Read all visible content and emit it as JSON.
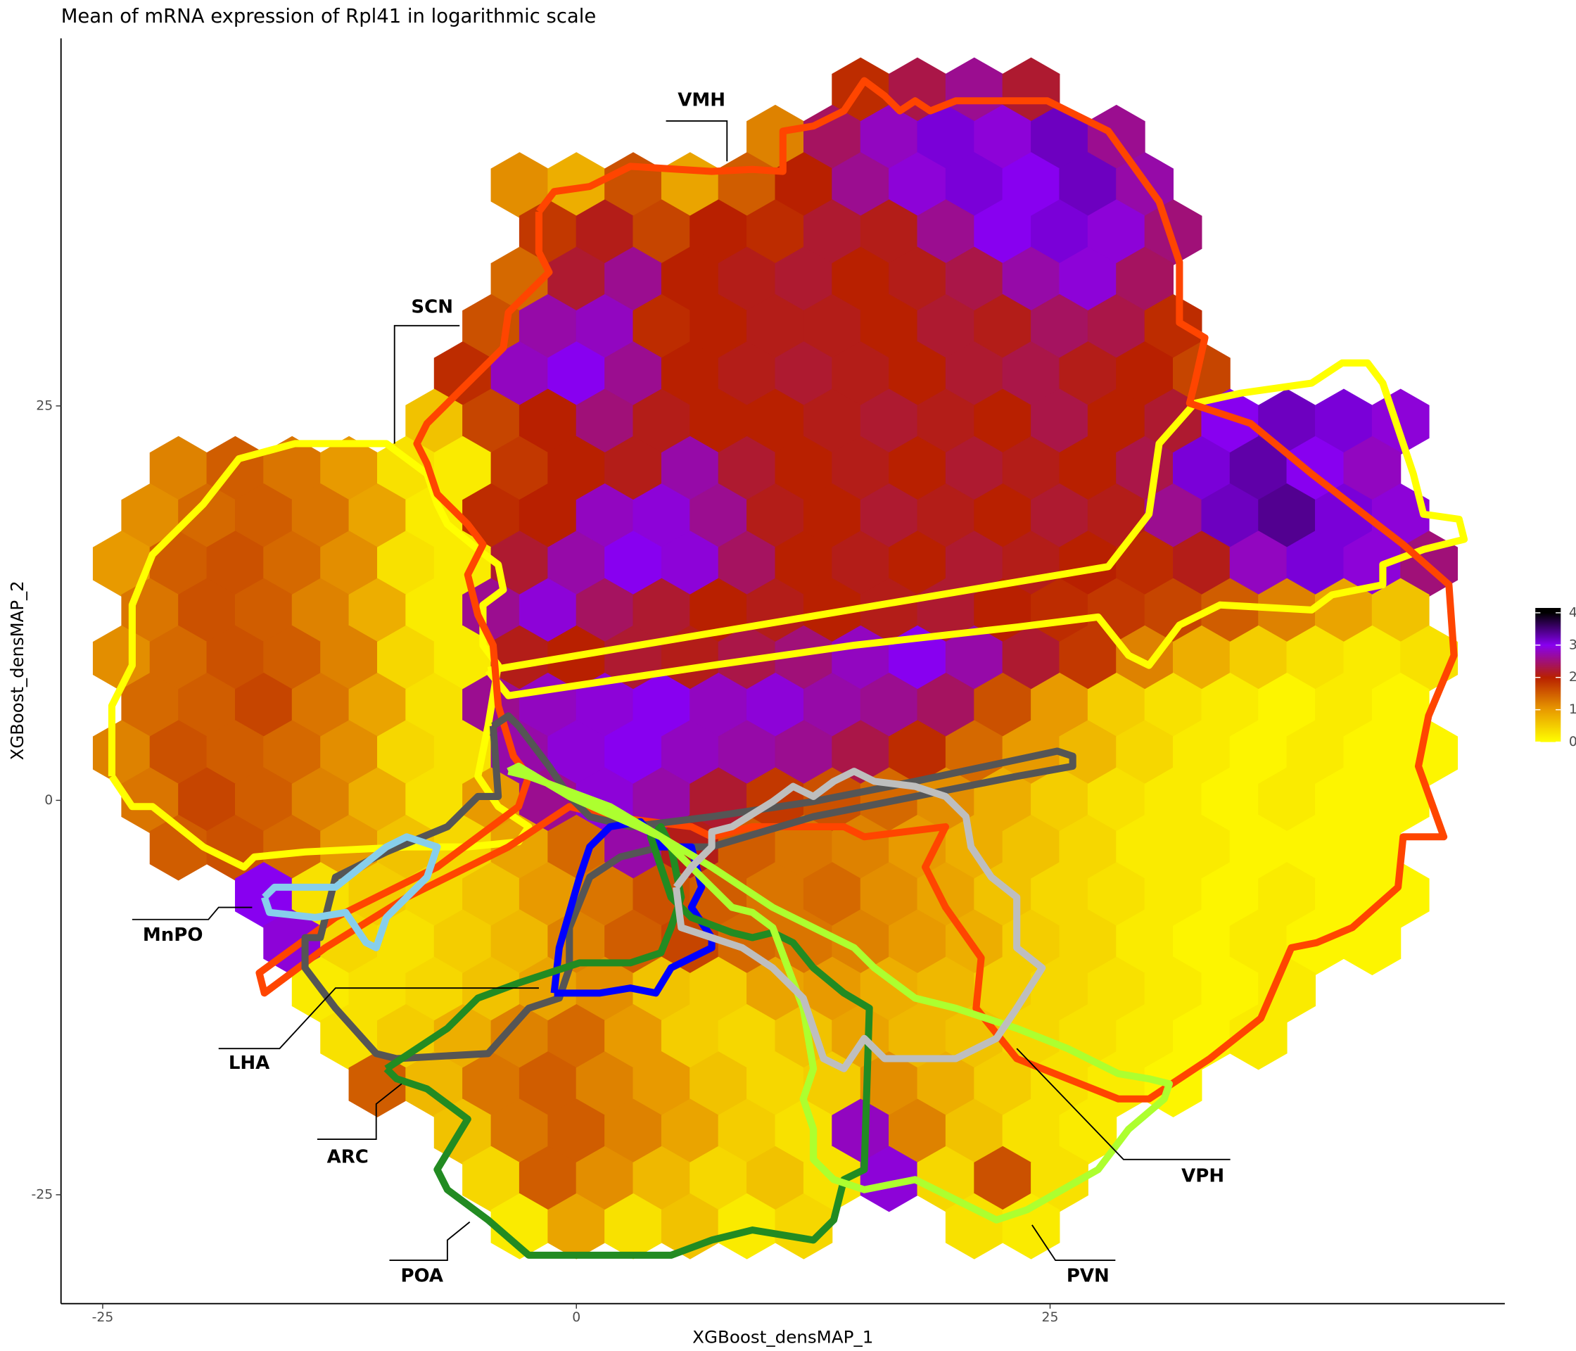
{
  "chart_data": {
    "type": "hexbin",
    "title": "Mean of mRNA expression of Rpl41 in logarithmic scale",
    "x_label": "XGBoost_densMAP_1",
    "y_label": "XGBoost_densMAP_2",
    "xlim": [
      -27.2,
      49
    ],
    "ylim": [
      -31.9,
      48.3
    ],
    "xticks": [
      -25,
      0,
      25
    ],
    "yticks": [
      -25,
      0,
      25
    ],
    "hexbins": [
      {
        "y": 45,
        "x": [
          15,
          18,
          21,
          24
        ],
        "values": [
          1.9,
          2.3,
          2.6,
          2.2
        ]
      },
      {
        "y": 42,
        "x": [
          10.5,
          13.5,
          16.5,
          19.5,
          22.5,
          25.5,
          28.5
        ],
        "values": [
          1.2,
          2.4,
          2.8,
          3.1,
          2.9,
          3.2,
          2.6
        ]
      },
      {
        "y": 39,
        "x": [
          -3,
          0,
          3,
          6,
          9,
          12,
          15,
          18,
          21,
          24,
          27,
          30
        ],
        "values": [
          1.1,
          0.8,
          1.6,
          0.9,
          1.5,
          2.0,
          2.6,
          2.9,
          3.1,
          3.0,
          3.2,
          2.7
        ]
      },
      {
        "y": 36,
        "x": [
          -1.5,
          1.5,
          4.5,
          7.5,
          10.5,
          13.5,
          16.5,
          19.5,
          22.5,
          25.5,
          28.5,
          31.5
        ],
        "values": [
          1.8,
          2.1,
          1.7,
          2.0,
          1.9,
          2.2,
          2.1,
          2.6,
          3.0,
          3.1,
          2.9,
          2.5
        ]
      },
      {
        "y": 33,
        "x": [
          -3,
          0,
          3,
          6,
          9,
          12,
          15,
          18,
          21,
          24,
          27,
          30
        ],
        "values": [
          1.4,
          2.2,
          2.6,
          2.0,
          2.1,
          2.2,
          2.0,
          2.1,
          2.3,
          2.7,
          2.9,
          2.4
        ]
      },
      {
        "y": 30,
        "x": [
          -4.5,
          -1.5,
          1.5,
          4.5,
          7.5,
          10.5,
          13.5,
          16.5,
          19.5,
          22.5,
          25.5,
          28.5,
          31.5
        ],
        "values": [
          1.6,
          2.7,
          2.8,
          1.9,
          2.0,
          2.1,
          2.1,
          2.0,
          2.2,
          2.1,
          2.4,
          2.3,
          1.9
        ]
      },
      {
        "y": 27,
        "x": [
          -6,
          -3,
          0,
          3,
          6,
          9,
          12,
          15,
          18,
          21,
          24,
          27,
          30,
          33
        ],
        "values": [
          1.9,
          2.8,
          3.0,
          2.6,
          2.0,
          2.1,
          2.2,
          2.1,
          2.0,
          2.2,
          2.3,
          2.1,
          2.0,
          1.7
        ]
      },
      {
        "y": 24,
        "x": [
          -7.5,
          -4.5,
          -1.5,
          1.5,
          4.5,
          7.5,
          10.5,
          13.5,
          16.5,
          19.5,
          22.5,
          25.5,
          28.5,
          31.5,
          34.5,
          37.5,
          40.5,
          43.5
        ],
        "values": [
          0.6,
          1.7,
          2.0,
          2.5,
          2.1,
          2.0,
          2.0,
          2.1,
          2.2,
          2.1,
          2.0,
          2.3,
          2.0,
          2.2,
          3.0,
          3.2,
          3.1,
          2.9
        ]
      },
      {
        "y": 21,
        "x": [
          -21,
          -18,
          -15,
          -12,
          -9,
          -6,
          -3,
          0,
          3,
          6,
          9,
          12,
          15,
          18,
          21,
          24,
          27,
          30,
          33,
          36,
          39,
          42
        ],
        "values": [
          1.2,
          1.5,
          1.3,
          1.0,
          0.3,
          0.2,
          1.8,
          2.0,
          2.1,
          2.7,
          2.2,
          2.0,
          2.1,
          2.0,
          2.2,
          2.1,
          2.0,
          2.3,
          3.1,
          3.3,
          3.0,
          2.8
        ]
      },
      {
        "y": 18,
        "x": [
          -22.5,
          -19.5,
          -16.5,
          -13.5,
          -10.5,
          -7.5,
          -4.5,
          -1.5,
          1.5,
          4.5,
          7.5,
          10.5,
          13.5,
          16.5,
          19.5,
          22.5,
          25.5,
          28.5,
          31.5,
          34.5,
          37.5,
          40.5,
          43.5
        ],
        "values": [
          1.1,
          1.4,
          1.5,
          1.3,
          0.9,
          0.2,
          1.9,
          2.0,
          2.8,
          2.9,
          2.6,
          2.1,
          2.0,
          2.2,
          2.1,
          2.0,
          2.2,
          2.1,
          2.6,
          3.2,
          3.4,
          3.1,
          2.9
        ]
      },
      {
        "y": 15,
        "x": [
          -24,
          -21,
          -18,
          -15,
          -12,
          -9,
          -6,
          -3,
          0,
          3,
          6,
          9,
          12,
          15,
          18,
          21,
          24,
          27,
          30,
          33,
          36,
          39,
          42,
          45
        ],
        "values": [
          1.0,
          1.5,
          1.6,
          1.4,
          1.1,
          0.3,
          0.2,
          2.2,
          2.7,
          3.0,
          2.9,
          2.4,
          2.0,
          2.1,
          2.0,
          2.2,
          2.1,
          2.0,
          1.9,
          2.1,
          2.8,
          3.1,
          2.9,
          2.5
        ]
      },
      {
        "y": 12,
        "x": [
          -22.5,
          -19.5,
          -16.5,
          -13.5,
          -10.5,
          -7.5,
          -4.5,
          -1.5,
          1.5,
          4.5,
          7.5,
          10.5,
          13.5,
          16.5,
          19.5,
          22.5,
          25.5,
          28.5,
          31.5,
          34.5,
          37.5,
          40.5,
          43.5
        ],
        "values": [
          1.3,
          1.6,
          1.5,
          1.2,
          0.8,
          0.2,
          2.6,
          2.9,
          2.4,
          2.2,
          2.0,
          2.1,
          2.0,
          2.1,
          2.2,
          2.0,
          1.9,
          1.8,
          1.7,
          1.5,
          1.2,
          0.9,
          0.6
        ]
      },
      {
        "y": 9,
        "x": [
          -24,
          -21,
          -18,
          -15,
          -12,
          -9,
          -6,
          -3,
          0,
          3,
          6,
          9,
          12,
          15,
          18,
          21,
          24,
          27,
          30,
          33,
          36,
          39,
          42,
          45
        ],
        "values": [
          1.1,
          1.4,
          1.6,
          1.5,
          1.2,
          0.4,
          0.2,
          2.1,
          2.0,
          2.2,
          2.1,
          2.3,
          2.5,
          2.8,
          3.0,
          2.7,
          2.2,
          1.8,
          1.2,
          0.8,
          0.5,
          0.3,
          0.2,
          0.3
        ]
      },
      {
        "y": 6,
        "x": [
          -22.5,
          -19.5,
          -16.5,
          -13.5,
          -10.5,
          -7.5,
          -4.5,
          -1.5,
          1.5,
          4.5,
          7.5,
          10.5,
          13.5,
          16.5,
          19.5,
          22.5,
          25.5,
          28.5,
          31.5,
          34.5,
          37.5,
          40.5,
          43.5
        ],
        "values": [
          1.4,
          1.5,
          1.7,
          1.3,
          0.9,
          0.3,
          2.6,
          2.8,
          2.9,
          3.0,
          2.8,
          2.9,
          2.7,
          2.6,
          2.4,
          1.6,
          1.0,
          0.5,
          0.3,
          0.2,
          0.1,
          0.2,
          0.1
        ]
      },
      {
        "y": 3,
        "x": [
          -24,
          -21,
          -18,
          -15,
          -12,
          -9,
          -6,
          -3,
          0,
          3,
          6,
          9,
          12,
          15,
          18,
          21,
          24,
          27,
          30,
          33,
          36,
          39,
          42,
          45
        ],
        "values": [
          1.2,
          1.6,
          1.5,
          1.4,
          1.1,
          0.4,
          0.3,
          2.7,
          2.9,
          3.0,
          2.8,
          2.7,
          2.6,
          2.3,
          1.9,
          1.4,
          1.0,
          0.7,
          0.4,
          0.2,
          0.1,
          0.2,
          0.1,
          0.1
        ]
      },
      {
        "y": 0,
        "x": [
          -22.5,
          -19.5,
          -16.5,
          -13.5,
          -10.5,
          -7.5,
          -4.5,
          -1.5,
          1.5,
          4.5,
          7.5,
          10.5,
          13.5,
          16.5,
          19.5,
          22.5,
          25.5,
          28.5,
          31.5,
          34.5,
          37.5,
          40.5,
          43.5
        ],
        "values": [
          1.3,
          1.7,
          1.5,
          1.2,
          0.8,
          0.3,
          1.0,
          2.6,
          2.9,
          2.7,
          2.2,
          1.8,
          1.6,
          1.4,
          1.1,
          0.8,
          0.5,
          0.3,
          0.2,
          0.1,
          0.2,
          0.1,
          0.1
        ]
      },
      {
        "y": -3,
        "x": [
          -21,
          -18,
          -15,
          -12,
          -9,
          -6,
          -3,
          0,
          3,
          6,
          9,
          12,
          15,
          18,
          21,
          24,
          27,
          30,
          33,
          36,
          39,
          42
        ],
        "values": [
          1.5,
          1.6,
          1.4,
          1.0,
          0.6,
          0.4,
          0.9,
          1.4,
          2.7,
          2.1,
          1.5,
          1.3,
          1.2,
          1.0,
          0.8,
          0.6,
          0.4,
          0.2,
          0.2,
          0.1,
          0.1,
          0.1
        ]
      },
      {
        "y": -6,
        "x": [
          -16.5,
          -13.5,
          -10.5,
          -7.5,
          -4.5,
          -1.5,
          1.5,
          4.5,
          7.5,
          10.5,
          13.5,
          16.5,
          19.5,
          22.5,
          25.5,
          28.5,
          31.5,
          34.5,
          37.5,
          40.5,
          43.5
        ],
        "values": [
          3.0,
          0.3,
          0.5,
          0.4,
          0.6,
          1.0,
          1.3,
          1.6,
          1.5,
          1.3,
          1.4,
          1.1,
          0.9,
          0.6,
          0.4,
          0.3,
          0.2,
          0.1,
          0.2,
          0.1,
          0.1
        ]
      },
      {
        "y": -9,
        "x": [
          -15,
          -12,
          -9,
          -6,
          -3,
          0,
          3,
          6,
          9,
          12,
          15,
          18,
          21,
          24,
          27,
          30,
          33,
          36,
          39,
          42
        ],
        "values": [
          2.9,
          0.4,
          0.3,
          0.5,
          0.7,
          1.2,
          1.5,
          1.7,
          1.4,
          1.3,
          1.2,
          1.0,
          0.8,
          0.5,
          0.4,
          0.2,
          0.1,
          0.2,
          0.1,
          0.1
        ]
      },
      {
        "y": -12,
        "x": [
          -13.5,
          -10.5,
          -7.5,
          -4.5,
          -1.5,
          1.5,
          4.5,
          7.5,
          10.5,
          13.5,
          16.5,
          19.5,
          22.5,
          25.5,
          28.5,
          31.5,
          34.5,
          37.5
        ],
        "values": [
          0.2,
          0.3,
          0.4,
          0.6,
          0.9,
          1.1,
          0.6,
          0.5,
          0.9,
          1.0,
          0.8,
          0.7,
          0.5,
          0.4,
          0.3,
          0.2,
          0.1,
          0.2
        ]
      },
      {
        "y": -15,
        "x": [
          -12,
          -9,
          -6,
          -3,
          0,
          3,
          6,
          9,
          12,
          15,
          18,
          21,
          24,
          27,
          30,
          33,
          36
        ],
        "values": [
          0.3,
          0.5,
          0.8,
          1.2,
          1.4,
          1.0,
          0.5,
          0.4,
          0.6,
          0.9,
          0.7,
          0.6,
          0.4,
          0.3,
          0.2,
          0.1,
          0.2
        ]
      },
      {
        "y": -18,
        "x": [
          -10.5,
          -7.5,
          -4.5,
          -1.5,
          1.5,
          4.5,
          7.5,
          10.5,
          13.5,
          16.5,
          19.5,
          22.5,
          25.5,
          28.5,
          31.5
        ],
        "values": [
          1.5,
          0.7,
          1.3,
          1.5,
          1.2,
          1.0,
          0.6,
          0.4,
          0.5,
          1.1,
          0.8,
          0.5,
          0.3,
          0.2,
          0.1
        ]
      },
      {
        "y": -21,
        "x": [
          -6,
          -3,
          0,
          3,
          6,
          9,
          12,
          15,
          18,
          21,
          24,
          27
        ],
        "values": [
          0.6,
          1.3,
          1.5,
          1.2,
          0.9,
          0.5,
          0.3,
          2.8,
          1.2,
          0.6,
          0.3,
          0.2
        ]
      },
      {
        "y": -24,
        "x": [
          -4.5,
          -1.5,
          1.5,
          4.5,
          7.5,
          10.5,
          13.5,
          16.5,
          19.5,
          22.5,
          25.5
        ],
        "values": [
          0.4,
          1.5,
          1.1,
          0.7,
          0.4,
          0.6,
          0.3,
          2.9,
          0.4,
          1.6,
          0.3
        ]
      },
      {
        "y": -27,
        "x": [
          -3,
          0,
          3,
          6,
          9,
          12,
          21,
          24
        ],
        "values": [
          0.2,
          0.9,
          0.3,
          0.6,
          0.2,
          0.4,
          0.3,
          0.2
        ]
      }
    ],
    "colorbar": {
      "lim": [
        0,
        4.15
      ],
      "ticks": [
        0,
        1,
        2,
        3,
        4
      ],
      "colors": [
        "#ffff00",
        "#e89a00",
        "#b82000",
        "#8800f0",
        "#000000"
      ]
    },
    "annotations": [
      "VMH",
      "SCN",
      "MnPO",
      "LHA",
      "ARC",
      "POA",
      "VPH",
      "PVN"
    ]
  }
}
